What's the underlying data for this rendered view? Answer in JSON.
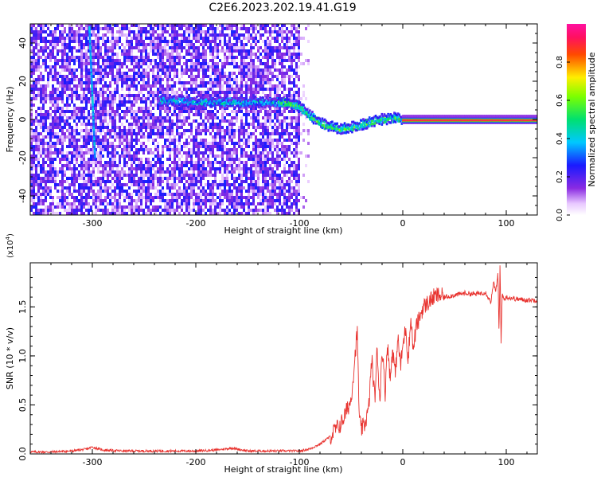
{
  "title": "C2E6.2023.202.19.41.G19",
  "chart_data": [
    {
      "type": "heatmap",
      "xlabel": "Height of straight line (km)",
      "ylabel": "Frequency (Hz)",
      "xlim": [
        -360,
        130
      ],
      "ylim": [
        -50,
        50
      ],
      "xticks": [
        -300,
        -200,
        -100,
        0,
        100
      ],
      "yticks": [
        -40,
        -20,
        0,
        20,
        40
      ],
      "colorbar": {
        "label": "Normalized spectral amplitude",
        "range": [
          0,
          1
        ],
        "ticks": [
          "0.0",
          "0.2",
          "0.4",
          "0.6",
          "0.8"
        ],
        "colormap": "rainbow (white → violet → blue → cyan → green → yellow → red → magenta)"
      },
      "ridge": {
        "description": "frequency ridge of strongest amplitude",
        "points": [
          [
            -230,
            10
          ],
          [
            -200,
            9
          ],
          [
            -180,
            9
          ],
          [
            -150,
            9
          ],
          [
            -115,
            9
          ],
          [
            -100,
            7
          ],
          [
            -90,
            2
          ],
          [
            -75,
            -3
          ],
          [
            -60,
            -5
          ],
          [
            -40,
            -3
          ],
          [
            -20,
            0
          ],
          [
            -5,
            1
          ],
          [
            0,
            0
          ],
          [
            130,
            0
          ]
        ]
      },
      "noise_region_xmax": -100
    },
    {
      "type": "line",
      "xlabel": "Height of straight line (km)",
      "ylabel": "SNR (10 * v/v)",
      "yscale_label": "(x10",
      "yscale_exp": "4",
      "xlim": [
        -360,
        130
      ],
      "ylim": [
        0,
        1.95
      ],
      "xticks": [
        -300,
        -200,
        -100,
        0,
        100
      ],
      "yticks": [
        "0.0",
        "0.5",
        "1.0",
        "1.5"
      ],
      "color": "#e8322e",
      "series": [
        {
          "x": [
            -360,
            -340,
            -320,
            -305,
            -300,
            -290,
            -270,
            -250,
            -230,
            -200,
            -180,
            -165,
            -150,
            -120,
            -100,
            -90,
            -80,
            -70,
            -65,
            -60,
            -55,
            -50,
            -47,
            -44,
            -42,
            -40,
            -37,
            -33,
            -30,
            -27,
            -25,
            -22,
            -20,
            -17,
            -15,
            -12,
            -10,
            -7,
            -5,
            -2,
            0,
            3,
            5,
            8,
            10,
            13,
            15,
            18,
            20,
            25,
            30,
            35,
            40,
            50,
            60,
            70,
            80,
            85,
            88,
            90,
            92,
            93,
            94,
            95,
            96,
            98,
            100,
            110,
            120,
            130
          ],
          "y": [
            0.02,
            0.02,
            0.03,
            0.05,
            0.07,
            0.04,
            0.03,
            0.03,
            0.03,
            0.03,
            0.04,
            0.06,
            0.03,
            0.03,
            0.03,
            0.05,
            0.1,
            0.18,
            0.25,
            0.3,
            0.42,
            0.55,
            0.9,
            1.25,
            0.35,
            0.25,
            0.3,
            0.45,
            0.98,
            0.55,
            1.05,
            0.55,
            1.1,
            0.62,
            1.15,
            0.75,
            1.08,
            0.8,
            1.2,
            0.9,
            1.1,
            1.3,
            0.95,
            1.4,
            1.05,
            1.3,
            1.35,
            1.45,
            1.5,
            1.55,
            1.6,
            1.62,
            1.6,
            1.62,
            1.64,
            1.63,
            1.65,
            1.55,
            1.75,
            1.65,
            1.85,
            1.2,
            1.95,
            1.15,
            1.62,
            1.58,
            1.6,
            1.58,
            1.57,
            1.57
          ]
        }
      ]
    }
  ]
}
